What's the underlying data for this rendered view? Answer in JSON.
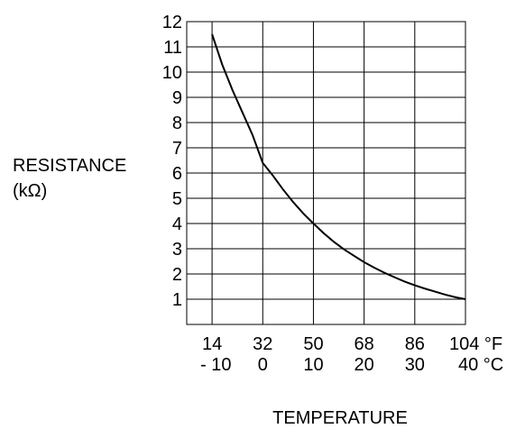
{
  "chart_data": {
    "type": "line",
    "ylabel_lines": [
      "RESISTANCE",
      "(kΩ)"
    ],
    "xlabel": "TEMPERATURE",
    "ylim": [
      0,
      12
    ],
    "xlim": [
      -15,
      40
    ],
    "y_ticks": [
      1,
      2,
      3,
      4,
      5,
      6,
      7,
      8,
      9,
      10,
      11,
      12
    ],
    "x_ticks_f": [
      "14",
      "32",
      "50",
      "68",
      "86",
      "104 °F"
    ],
    "x_ticks_c": [
      "- 10",
      "0",
      "10",
      "20",
      "30",
      "40 °C"
    ],
    "x_tick_values_c": [
      -10,
      0,
      10,
      20,
      30,
      40
    ],
    "grid": true,
    "series": [
      {
        "x": [
          -10,
          -8,
          -6,
          -4,
          -2,
          0,
          2,
          4,
          6,
          8,
          10,
          12,
          14,
          16,
          18,
          20,
          22,
          24,
          26,
          28,
          30,
          32,
          34,
          36,
          38,
          40
        ],
        "y": [
          11.5,
          10.3,
          9.3,
          8.4,
          7.5,
          6.4,
          5.9,
          5.35,
          4.85,
          4.4,
          4.0,
          3.62,
          3.28,
          2.98,
          2.72,
          2.47,
          2.25,
          2.05,
          1.87,
          1.7,
          1.55,
          1.42,
          1.3,
          1.18,
          1.08,
          1.0
        ]
      }
    ]
  }
}
